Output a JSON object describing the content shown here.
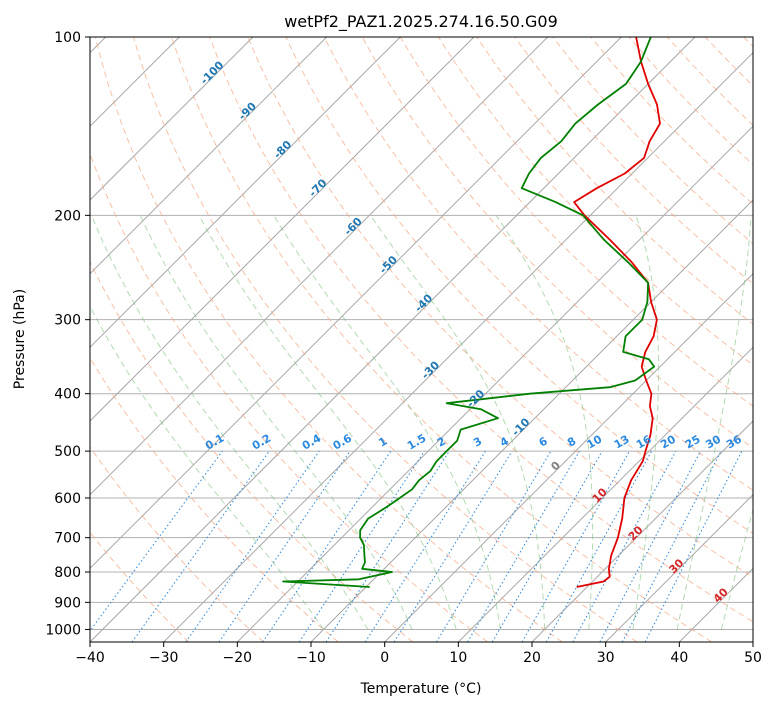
{
  "chart_data": {
    "type": "line",
    "chart_kind": "skew-T log-P diagram",
    "title": "wetPf2_PAZ1.2025.274.16.50.G09",
    "xlabel": "Temperature (°C)",
    "ylabel": "Pressure (hPa)",
    "xlim": [
      -40,
      50
    ],
    "ylim": [
      1050,
      100
    ],
    "x_ticks": [
      -40,
      -30,
      -20,
      -10,
      0,
      10,
      20,
      30,
      40,
      50
    ],
    "y_ticks": [
      100,
      200,
      300,
      400,
      500,
      600,
      700,
      800,
      900,
      1000
    ],
    "isotherm_labels": [
      -100,
      -90,
      -80,
      -70,
      -60,
      -50,
      -40,
      -30,
      -20,
      -10,
      0,
      10,
      20,
      30,
      40
    ],
    "mixing_ratio_labels": [
      "0.1",
      "0.2",
      "0.4",
      "0.6",
      "1",
      "1.5",
      "2",
      "3",
      "4",
      "6",
      "8",
      "10",
      "13",
      "16",
      "20",
      "25",
      "30",
      "36"
    ],
    "series": [
      {
        "name": "Temperature",
        "color": "#e00000",
        "points": [
          [
            18.6,
            848
          ],
          [
            21.5,
            830
          ],
          [
            21.7,
            815
          ],
          [
            20.5,
            790
          ],
          [
            19.0,
            750
          ],
          [
            17.5,
            700
          ],
          [
            15.5,
            650
          ],
          [
            13.0,
            600
          ],
          [
            11.5,
            560
          ],
          [
            10.5,
            520
          ],
          [
            9.5,
            500
          ],
          [
            8.0,
            470
          ],
          [
            6.0,
            440
          ],
          [
            4.0,
            420
          ],
          [
            2.5,
            400
          ],
          [
            0.0,
            380
          ],
          [
            -2.5,
            360
          ],
          [
            -4.0,
            340
          ],
          [
            -5.0,
            320
          ],
          [
            -6.8,
            300
          ],
          [
            -10.0,
            280
          ],
          [
            -13.0,
            260
          ],
          [
            -18.0,
            240
          ],
          [
            -24.0,
            220
          ],
          [
            -30.8,
            200
          ],
          [
            -34.0,
            190
          ],
          [
            -32.8,
            180
          ],
          [
            -31.0,
            170
          ],
          [
            -30.5,
            160
          ],
          [
            -32.0,
            150
          ],
          [
            -33.0,
            140
          ],
          [
            -36.0,
            130
          ],
          [
            -40.0,
            120
          ],
          [
            -44.0,
            110
          ],
          [
            -48.0,
            100
          ]
        ]
      },
      {
        "name": "Dewpoint",
        "color": "#008000",
        "points": [
          [
            -9.5,
            848
          ],
          [
            -22.0,
            830
          ],
          [
            -12.0,
            823
          ],
          [
            -8.5,
            800
          ],
          [
            -13.0,
            790
          ],
          [
            -13.5,
            770
          ],
          [
            -14.5,
            750
          ],
          [
            -16.0,
            720
          ],
          [
            -17.5,
            700
          ],
          [
            -18.5,
            680
          ],
          [
            -19.0,
            650
          ],
          [
            -18.0,
            620
          ],
          [
            -17.5,
            600
          ],
          [
            -17.0,
            580
          ],
          [
            -17.3,
            560
          ],
          [
            -17.0,
            540
          ],
          [
            -17.5,
            520
          ],
          [
            -17.5,
            500
          ],
          [
            -17.5,
            480
          ],
          [
            -18.5,
            460
          ],
          [
            -15.0,
            440
          ],
          [
            -18.5,
            425
          ],
          [
            -24.0,
            415
          ],
          [
            -14.0,
            400
          ],
          [
            -4.0,
            390
          ],
          [
            -1.5,
            380
          ],
          [
            -0.8,
            360
          ],
          [
            -2.5,
            350
          ],
          [
            -7.0,
            340
          ],
          [
            -8.8,
            320
          ],
          [
            -8.8,
            300
          ],
          [
            -10.5,
            280
          ],
          [
            -13.0,
            260
          ],
          [
            -18.5,
            240
          ],
          [
            -24.8,
            220
          ],
          [
            -31.0,
            200
          ],
          [
            -36.5,
            190
          ],
          [
            -43.0,
            180
          ],
          [
            -44.0,
            170
          ],
          [
            -44.5,
            160
          ],
          [
            -44.0,
            150
          ],
          [
            -44.5,
            140
          ],
          [
            -44.0,
            130
          ],
          [
            -43.0,
            120
          ],
          [
            -44.0,
            110
          ],
          [
            -46.0,
            100
          ]
        ]
      }
    ],
    "background_lines": [
      "isobars",
      "skewed isotherms",
      "dry adiabats",
      "moist adiabats",
      "mixing ratio lines"
    ]
  }
}
